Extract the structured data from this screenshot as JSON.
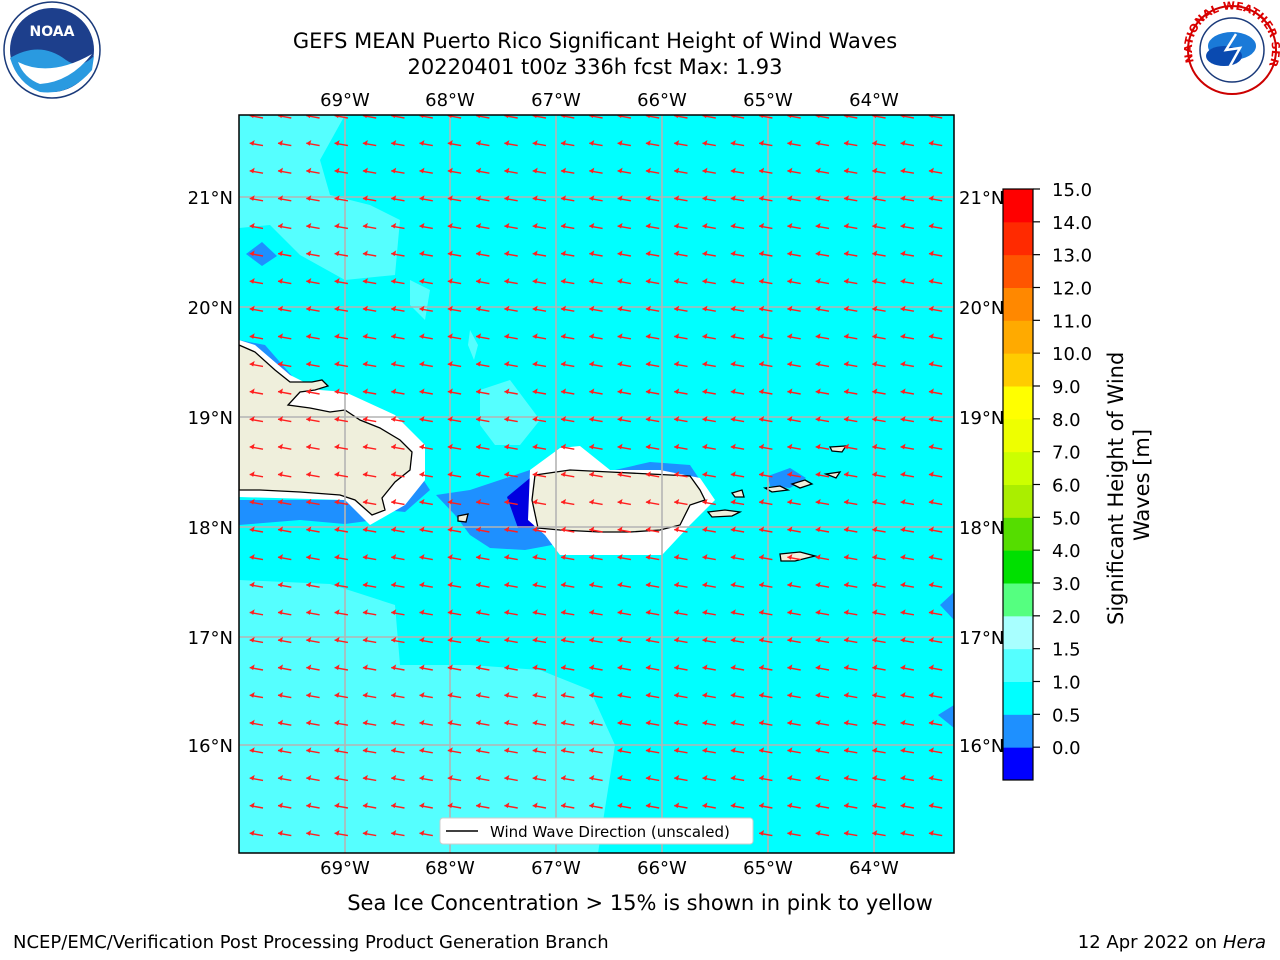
{
  "header": {
    "title_line1": "GEFS MEAN Puerto Rico Significant Height of Wind Waves",
    "title_line2": "20220401 t00z 336h fcst   Max: 1.93"
  },
  "logos": {
    "left": "NOAA",
    "right": "NATIONAL WEATHER SERVICE"
  },
  "map": {
    "lon_labels": [
      "69°W",
      "68°W",
      "67°W",
      "66°W",
      "65°W",
      "64°W"
    ],
    "lat_labels": [
      "21°N",
      "20°N",
      "19°N",
      "18°N",
      "17°N",
      "16°N"
    ],
    "legend_label": "Wind Wave Direction (unscaled)",
    "colors": {
      "ocean": "#00ffff",
      "light": "#55ffff",
      "lighter": "#a8ffff",
      "blue": "#1e90ff",
      "deep": "#0000e0",
      "land": "#efefdc",
      "arrow": "#ff1f1f"
    }
  },
  "colorbar": {
    "label": "Significant Height of Wind Waves [m]",
    "ticks": [
      "15.0",
      "14.0",
      "13.0",
      "12.0",
      "11.0",
      "10.0",
      "9.0",
      "8.0",
      "7.0",
      "6.0",
      "5.0",
      "4.0",
      "3.0",
      "2.0",
      "1.5",
      "1.0",
      "0.5",
      "0.0"
    ],
    "colors": [
      "#0000ff",
      "#1e90ff",
      "#00ffff",
      "#55ffff",
      "#a8ffff",
      "#55ff80",
      "#00e000",
      "#55dd00",
      "#aaee00",
      "#ccff00",
      "#eeff00",
      "#ffff00",
      "#ffcc00",
      "#ffaa00",
      "#ff8800",
      "#ff5500",
      "#ff2a00",
      "#ff0000"
    ]
  },
  "caption": "Sea Ice Concentration > 15% is shown in pink to yellow",
  "footer": {
    "left": "NCEP/EMC/Verification Post Processing Product Generation Branch",
    "right_date": "12 Apr 2022 on ",
    "right_machine": "Hera"
  }
}
